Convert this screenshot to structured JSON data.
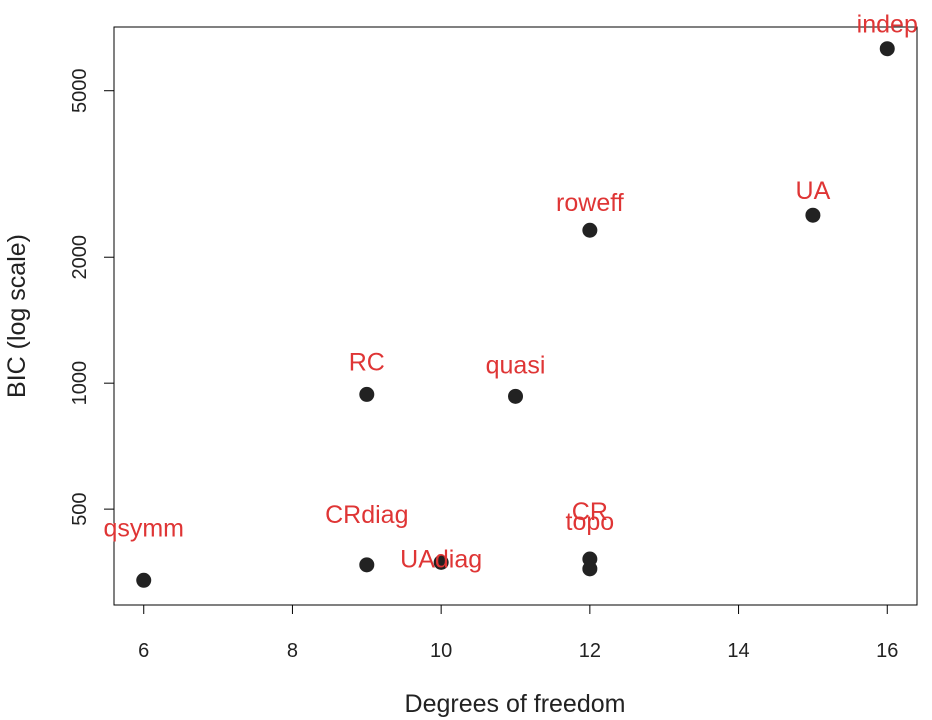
{
  "chart_data": {
    "type": "scatter",
    "xlabel": "Degrees of freedom",
    "ylabel": "BIC (log scale)",
    "xlim": [
      5.6,
      16.4
    ],
    "ylim": [
      295,
      7100
    ],
    "y_scale": "log",
    "x_ticks": [
      6,
      8,
      10,
      12,
      14,
      16
    ],
    "y_ticks": [
      500,
      1000,
      2000,
      5000
    ],
    "point_color": "#222222",
    "label_color": "#df3535",
    "grid": false,
    "points": [
      {
        "label": "indep",
        "x": 16,
        "y": 6300
      },
      {
        "label": "UA",
        "x": 15,
        "y": 2520
      },
      {
        "label": "roweff",
        "x": 12,
        "y": 2320
      },
      {
        "label": "RC",
        "x": 9,
        "y": 940
      },
      {
        "label": "quasi",
        "x": 11,
        "y": 930
      },
      {
        "label": "CR",
        "x": 12,
        "y": 380
      },
      {
        "label": "topo",
        "x": 12,
        "y": 360
      },
      {
        "label": "CRdiag",
        "x": 9,
        "y": 368
      },
      {
        "label": "UAdiag",
        "x": 10,
        "y": 373
      },
      {
        "label": "qsymm",
        "x": 6,
        "y": 338
      }
    ]
  }
}
